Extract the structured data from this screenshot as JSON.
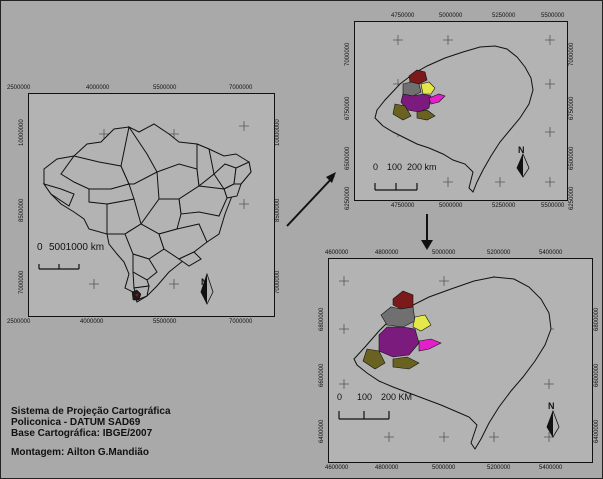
{
  "panel1": {
    "ticks_top": [
      "2500000",
      "4000000",
      "5500000",
      "7000000"
    ],
    "ticks_bottom": [
      "2500000",
      "4000000",
      "5500000",
      "7000000"
    ],
    "ticks_left": [
      "10000000",
      "8500000",
      "7000000"
    ],
    "ticks_right": [
      "10000000",
      "8500000",
      "7000000"
    ],
    "scale_labels": [
      "0",
      "5001000 km"
    ],
    "north": "N"
  },
  "panel2": {
    "ticks_top": [
      "4750000",
      "5000000",
      "5250000",
      "5500000"
    ],
    "ticks_bottom": [
      "4750000",
      "5000000",
      "5250000",
      "5500000"
    ],
    "ticks_left": [
      "7000000",
      "6750000",
      "6500000",
      "6250000"
    ],
    "ticks_right": [
      "7000000",
      "6750000",
      "6500000",
      "6250000"
    ],
    "scale_labels": [
      "0",
      "100",
      "200 km"
    ],
    "north": "N"
  },
  "panel3": {
    "ticks_top": [
      "4600000",
      "4800000",
      "5000000",
      "5200000",
      "5400000"
    ],
    "ticks_bottom": [
      "4600000",
      "4800000",
      "5000000",
      "5200000",
      "5400000"
    ],
    "ticks_left": [
      "6800000",
      "6600000",
      "6400000"
    ],
    "ticks_right": [
      "6800000",
      "6600000",
      "6400000"
    ],
    "scale_labels": [
      "0",
      "100",
      "200 KM"
    ],
    "north": "N"
  },
  "credits": {
    "line1": "Sistema de Projeção Cartográfica",
    "line2": "Policonica - DATUM SAD69",
    "line3": "Base Cartográfica: IBGE/2007",
    "line4": "Montagem: Ailton G.Mandião"
  },
  "colors": {
    "background": "#a9a9a9",
    "panel": "#b3b3b3",
    "region_maroon": "#7a1a1a",
    "region_gray": "#707070",
    "region_purple": "#7b1b7e",
    "region_yellow": "#e5e84a",
    "region_magenta": "#e21fc8",
    "region_olive": "#6a6220",
    "region_black": "#1a1a1a"
  }
}
